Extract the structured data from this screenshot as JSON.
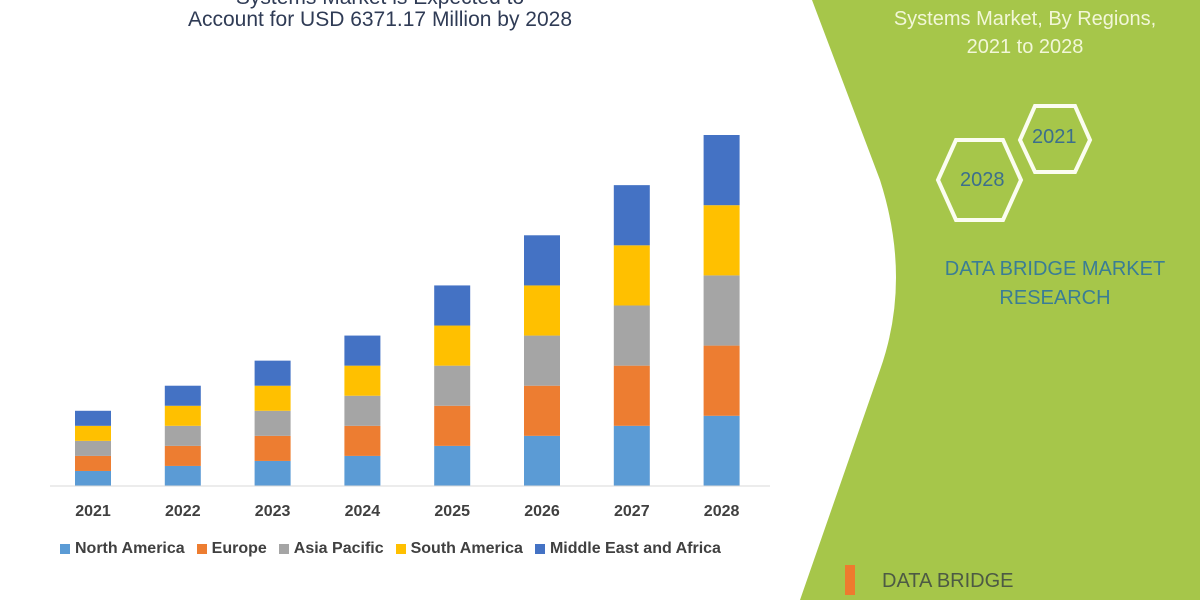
{
  "header": {
    "title_line1": "Systems Market is Expected to",
    "title_line2": "Account for USD 6371.17 Million by 2028"
  },
  "side_panel": {
    "title_line1": "Systems Market, By Regions,",
    "title_line2": "2021 to 2028",
    "hex_years": [
      "2021",
      "2028"
    ],
    "brand_line1": "DATA BRIDGE MARKET",
    "brand_line2": "RESEARCH",
    "logo_text": "DATA BRIDGE",
    "color": "#a6c64a"
  },
  "chart_data": {
    "type": "bar",
    "stacked": true,
    "categories": [
      "2021",
      "2022",
      "2023",
      "2024",
      "2025",
      "2026",
      "2027",
      "2028"
    ],
    "series": [
      {
        "name": "North America",
        "color": "#5b9bd5",
        "values": [
          3,
          4,
          5,
          6,
          8,
          10,
          12,
          14
        ]
      },
      {
        "name": "Europe",
        "color": "#ed7d31",
        "values": [
          3,
          4,
          5,
          6,
          8,
          10,
          12,
          14
        ]
      },
      {
        "name": "Asia Pacific",
        "color": "#a5a5a5",
        "values": [
          3,
          4,
          5,
          6,
          8,
          10,
          12,
          14
        ]
      },
      {
        "name": "South America",
        "color": "#ffc000",
        "values": [
          3,
          4,
          5,
          6,
          8,
          10,
          12,
          14
        ]
      },
      {
        "name": "Middle East and Africa",
        "color": "#4472c4",
        "values": [
          3,
          4,
          5,
          6,
          8,
          10,
          12,
          14
        ]
      }
    ],
    "ylim": [
      0,
      75
    ],
    "y_axis_shown": false,
    "grid": false,
    "legend_position": "bottom"
  }
}
